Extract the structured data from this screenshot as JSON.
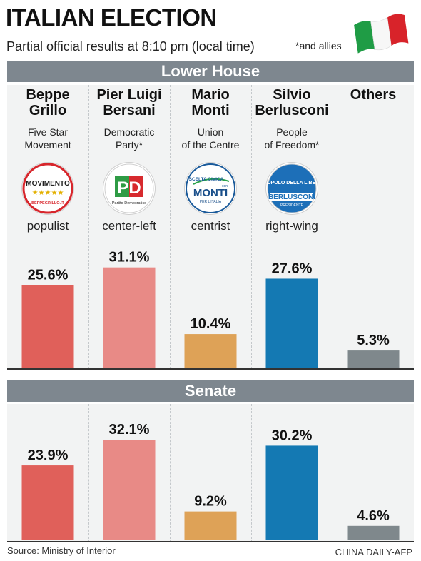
{
  "header": {
    "title": "ITALIAN ELECTION",
    "subtitle": "Partial official results at 8:10 pm (local time)",
    "note": "*and allies"
  },
  "candidates": [
    {
      "name_line1": "Beppe",
      "name_line2": "Grillo",
      "party_line1": "Five Star",
      "party_line2": "Movement",
      "leaning": "populist",
      "logo": {
        "lines": [
          "MOVIMENTO",
          "★★★★★",
          "BEPPEGRILLO.IT"
        ]
      }
    },
    {
      "name_line1": "Pier Luigi",
      "name_line2": "Bersani",
      "party_line1": "Democratic",
      "party_line2": "Party*",
      "leaning": "center-left",
      "logo": {
        "lines": [
          "PD",
          "Partito Democratico"
        ]
      }
    },
    {
      "name_line1": "Mario",
      "name_line2": "Monti",
      "party_line1": "Union",
      "party_line2": "of the Centre",
      "leaning": "centrist",
      "logo": {
        "lines": [
          "SCELTA CIVICA",
          "con",
          "MONTI",
          "PER L'ITALIA"
        ]
      }
    },
    {
      "name_line1": "Silvio",
      "name_line2": "Berlusconi",
      "party_line1": "People",
      "party_line2": "of Freedom*",
      "leaning": "right-wing",
      "logo": {
        "lines": [
          "IL POPOLO DELLA LIBERTÀ",
          "BERLUSCONI",
          "PRESIDENTE"
        ]
      }
    },
    {
      "name_line1": "Others",
      "name_line2": "",
      "party_line1": "",
      "party_line2": "",
      "leaning": "",
      "logo": null
    }
  ],
  "colors": {
    "grillo": "#e0605a",
    "bersani": "#e88a86",
    "monti": "#dea257",
    "berlusconi": "#1479b3",
    "others": "#7f888c",
    "band": "#7e878f",
    "panel": "#f2f3f3"
  },
  "chart_data": [
    {
      "type": "bar",
      "title": "Lower House",
      "categories": [
        "Beppe Grillo",
        "Pier Luigi Bersani",
        "Mario Monti",
        "Silvio Berlusconi",
        "Others"
      ],
      "values": [
        25.6,
        31.1,
        10.4,
        27.6,
        5.3
      ],
      "labels": [
        "25.6%",
        "31.1%",
        "10.4%",
        "27.6%",
        "5.3%"
      ],
      "ylim": [
        0,
        41
      ],
      "grid": false,
      "legend": "none"
    },
    {
      "type": "bar",
      "title": "Senate",
      "categories": [
        "Beppe Grillo",
        "Pier Luigi Bersani",
        "Mario Monti",
        "Silvio Berlusconi",
        "Others"
      ],
      "values": [
        23.9,
        32.1,
        9.2,
        30.2,
        4.6
      ],
      "labels": [
        "23.9%",
        "32.1%",
        "9.2%",
        "30.2%",
        "4.6%"
      ],
      "ylim": [
        0,
        41
      ],
      "grid": false,
      "legend": "none"
    }
  ],
  "footer": {
    "source": "Source: Ministry of Interior",
    "credit": "CHINA DAILY-AFP"
  }
}
